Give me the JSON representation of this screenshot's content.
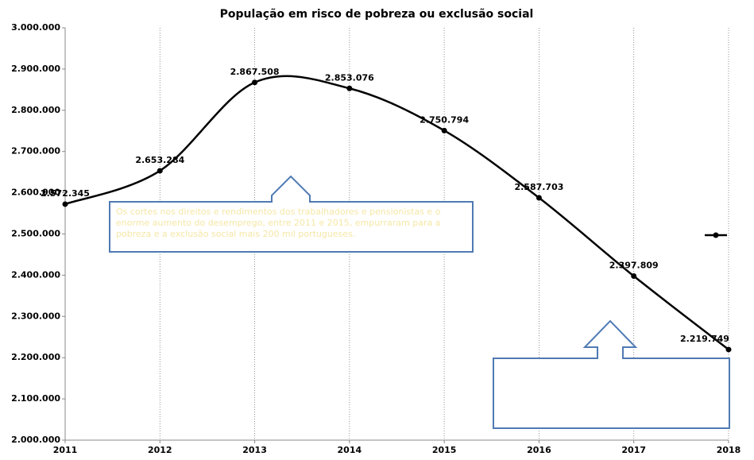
{
  "chart_data": {
    "type": "line",
    "title": "População em risco de pobreza ou exclusão social",
    "categories": [
      "2011",
      "2012",
      "2013",
      "2014",
      "2015",
      "2016",
      "2017",
      "2018"
    ],
    "series": [
      {
        "color": "#000000",
        "values": [
          2572345,
          2653284,
          2867508,
          2853076,
          2750794,
          2587703,
          2397809,
          2219749
        ],
        "value_labels": [
          "2.572.345",
          "2.653.284",
          "2.867.508",
          "2.853.076",
          "2.750.794",
          "2.587.703",
          "2.397.809",
          "2.219.749"
        ]
      }
    ],
    "ylim": [
      2000000,
      3000000
    ],
    "yticks": [
      {
        "value": 2000000,
        "label": "2.000.000"
      },
      {
        "value": 2100000,
        "label": "2.100.000"
      },
      {
        "value": 2200000,
        "label": "2.200.000"
      },
      {
        "value": 2300000,
        "label": "2.300.000"
      },
      {
        "value": 2400000,
        "label": "2.400.000"
      },
      {
        "value": 2500000,
        "label": "2.500.000"
      },
      {
        "value": 2600000,
        "label": "2.600.000"
      },
      {
        "value": 2700000,
        "label": "2.700.000"
      },
      {
        "value": 2800000,
        "label": "2.800.000"
      },
      {
        "value": 2900000,
        "label": "2.900.000"
      },
      {
        "value": 3000000,
        "label": "3.000.000"
      }
    ],
    "grid": true,
    "annotations": [
      "Os cortes nos direitos e rendimentos dos trabalhadores e pensionistas e o enorme aumento do desemprego, entre 2011 e 2015, empurraram para a pobreza e a exclusão social mais 200 mil portugueses."
    ]
  }
}
